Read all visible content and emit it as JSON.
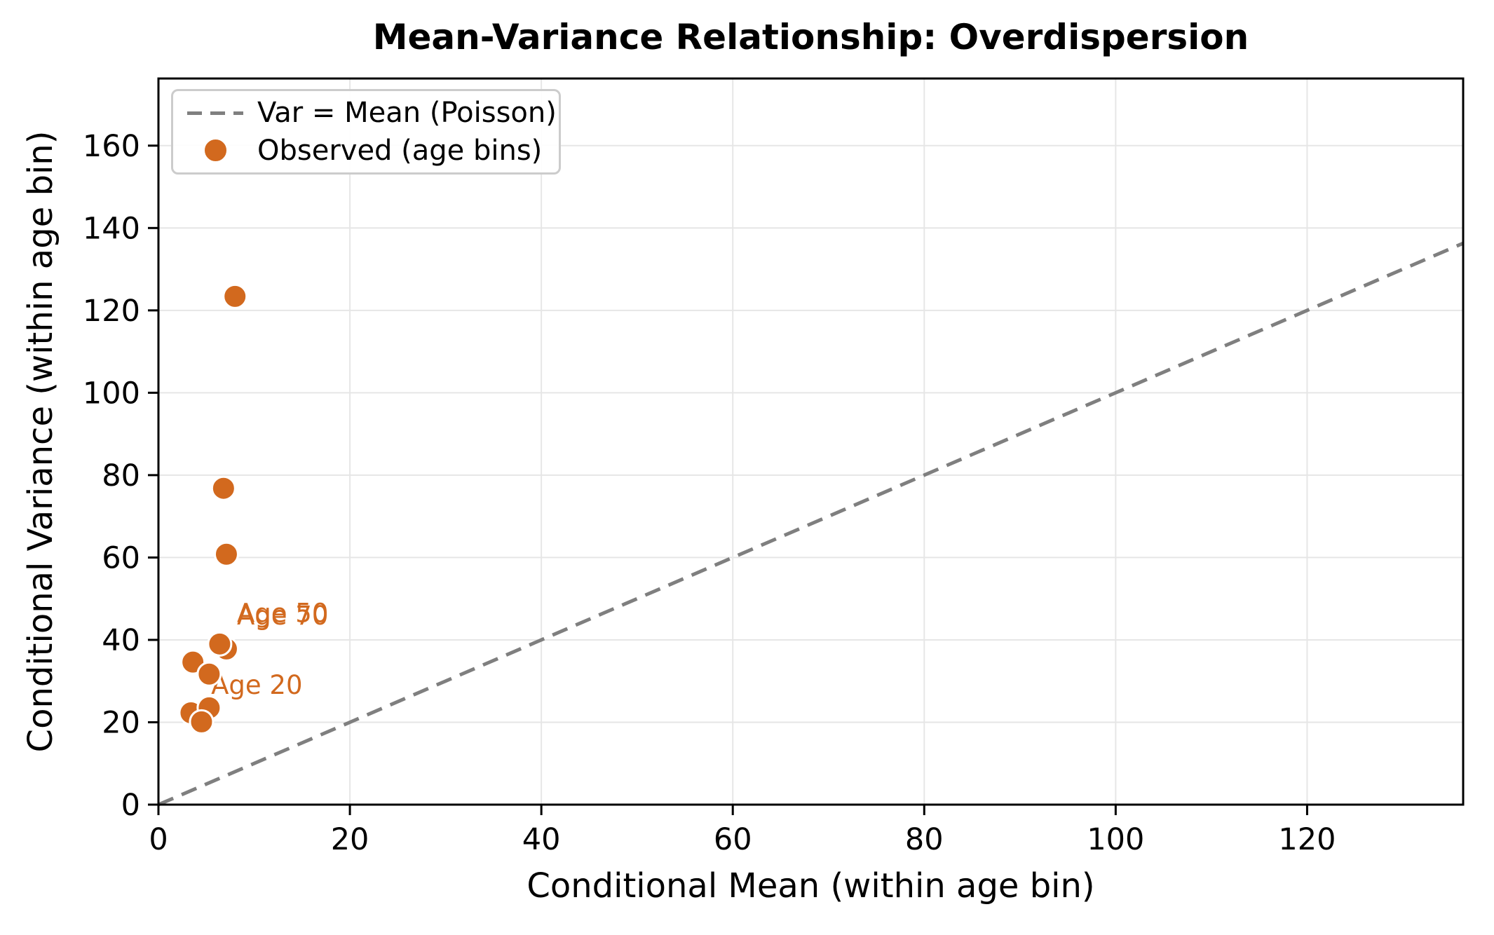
{
  "chart_data": {
    "type": "scatter",
    "title": "Mean-Variance Relationship: Overdispersion",
    "xlabel": "Conditional Mean (within age bin)",
    "ylabel": "Conditional Variance (within age bin)",
    "xlim": [
      0,
      136.3
    ],
    "ylim": [
      0,
      176.3
    ],
    "xticks": [
      0,
      20,
      40,
      60,
      80,
      100,
      120
    ],
    "yticks": [
      0,
      20,
      40,
      60,
      80,
      100,
      120,
      140,
      160
    ],
    "grid": true,
    "grid_color": "#e6e6e6",
    "background": "#ffffff",
    "reference_line": {
      "label": "Var = Mean (Poisson)",
      "style": "dashed",
      "color": "#7f7f7f",
      "x": [
        0,
        136.3
      ],
      "y": [
        0,
        136.3
      ]
    },
    "series_name": "Observed (age bins)",
    "point_color": "#D2691E",
    "point_edge_color": "#ffffff",
    "points": [
      {
        "x": 8.0,
        "y": 123.4
      },
      {
        "x": 6.8,
        "y": 76.8
      },
      {
        "x": 7.1,
        "y": 60.8
      },
      {
        "x": 7.1,
        "y": 37.8
      },
      {
        "x": 6.4,
        "y": 39.0
      },
      {
        "x": 3.6,
        "y": 34.6
      },
      {
        "x": 5.3,
        "y": 31.7
      },
      {
        "x": 3.4,
        "y": 22.3
      },
      {
        "x": 5.3,
        "y": 23.5
      },
      {
        "x": 4.5,
        "y": 20.1
      }
    ],
    "annotations": [
      {
        "text": "Age 50",
        "x": 8.2,
        "y": 44.3
      },
      {
        "text": "Age 70",
        "x": 8.2,
        "y": 43.7
      },
      {
        "text": "Age 20",
        "x": 5.5,
        "y": 26.9
      }
    ],
    "annotation_color": "#D2691E",
    "legend": {
      "position": "upper left",
      "entries": [
        {
          "label": "Var = Mean (Poisson)",
          "marker": "dashed-line",
          "color": "#7f7f7f"
        },
        {
          "label": "Observed (age bins)",
          "marker": "dot",
          "color": "#D2691E"
        }
      ]
    }
  }
}
